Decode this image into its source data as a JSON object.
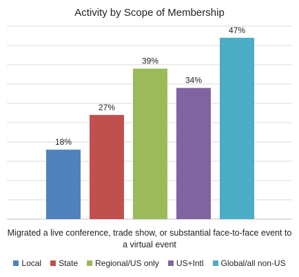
{
  "chart_data": {
    "type": "bar",
    "title": "Activity by Scope of Membership",
    "xlabel": "Migrated a live conference, trade show, or substantial face-to-face event to a virtual event",
    "ylabel": "",
    "ylim": [
      0,
      50
    ],
    "grid": true,
    "legend_position": "bottom",
    "categories": [
      "Local",
      "State",
      "Regional/US only",
      "US+Intl",
      "Global/all non-US"
    ],
    "values": [
      18,
      27,
      39,
      34,
      47
    ],
    "data_labels": [
      "18%",
      "27%",
      "39%",
      "34%",
      "47%"
    ],
    "colors": [
      "#4F81BD",
      "#C0504D",
      "#9BBB59",
      "#8064A2",
      "#4BACC6"
    ]
  }
}
